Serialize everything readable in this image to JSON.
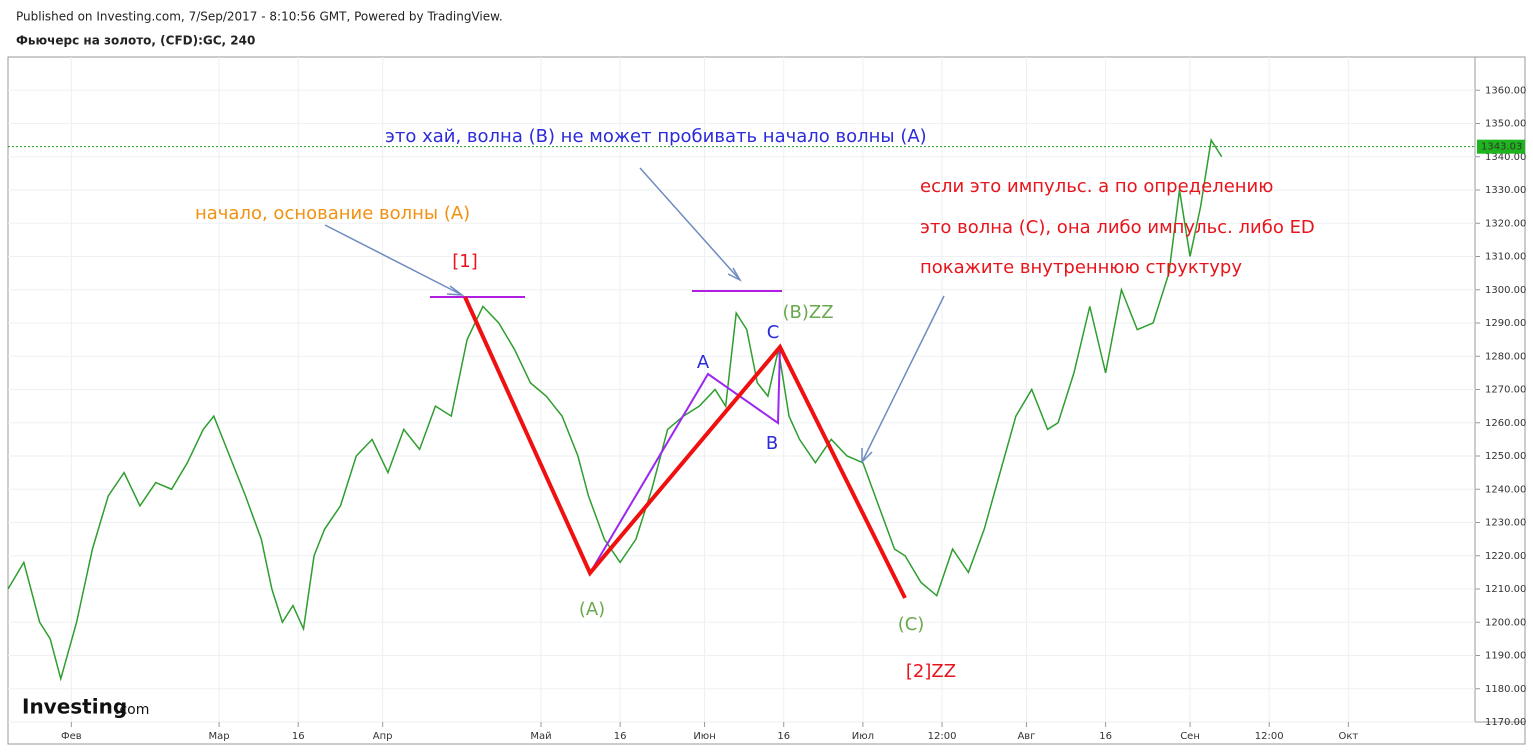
{
  "header": {
    "published": "Published on Investing.com, 7/Sep/2017 - 8:10:56 GMT, Powered by TradingView.",
    "symbol": "Фьючерс на золото, (CFD):GC, 240"
  },
  "logo": {
    "brand": "Investing",
    "suffix": ".com"
  },
  "chart_data": {
    "type": "line",
    "color": "#2e9e2e",
    "grid": true,
    "x": [
      20,
      23,
      26,
      28,
      30,
      33,
      36,
      39,
      42,
      45,
      48,
      51,
      54,
      57,
      59,
      62,
      65,
      68,
      70,
      72,
      74,
      76,
      78,
      80,
      83,
      86,
      89,
      92,
      95,
      98,
      101,
      104,
      107,
      110,
      113,
      116,
      119,
      122,
      125,
      128,
      130,
      133,
      136,
      139,
      142,
      145,
      148,
      151,
      154,
      156,
      158,
      160,
      162,
      164,
      166,
      168,
      170,
      173,
      176,
      179,
      182,
      185,
      188,
      190,
      193,
      196,
      199,
      202,
      205,
      208,
      211,
      214,
      217,
      219,
      222,
      225,
      228,
      231,
      234,
      237,
      240,
      242,
      244,
      246,
      248,
      250
    ],
    "values": [
      1210,
      1218,
      1200,
      1195,
      1183,
      1200,
      1222,
      1238,
      1245,
      1235,
      1242,
      1240,
      1248,
      1258,
      1262,
      1250,
      1238,
      1225,
      1210,
      1200,
      1205,
      1198,
      1220,
      1228,
      1235,
      1250,
      1255,
      1245,
      1258,
      1252,
      1265,
      1262,
      1285,
      1295,
      1290,
      1282,
      1272,
      1268,
      1262,
      1250,
      1238,
      1225,
      1218,
      1225,
      1240,
      1258,
      1262,
      1265,
      1270,
      1265,
      1293,
      1288,
      1272,
      1268,
      1282,
      1262,
      1255,
      1248,
      1255,
      1250,
      1248,
      1235,
      1222,
      1220,
      1212,
      1208,
      1222,
      1215,
      1228,
      1245,
      1262,
      1270,
      1258,
      1260,
      1275,
      1295,
      1275,
      1300,
      1288,
      1290,
      1305,
      1330,
      1310,
      1325,
      1345,
      1340
    ],
    "xlim": [
      20,
      298
    ],
    "xticks": [
      {
        "value": 32,
        "label": "Фев"
      },
      {
        "value": 60,
        "label": "Мар"
      },
      {
        "value": 75,
        "label": "16"
      },
      {
        "value": 91,
        "label": "Апр"
      },
      {
        "value": 121,
        "label": "Май"
      },
      {
        "value": 136,
        "label": "16"
      },
      {
        "value": 152,
        "label": "Июн"
      },
      {
        "value": 167,
        "label": "16"
      },
      {
        "value": 182,
        "label": "Июл"
      },
      {
        "value": 197,
        "label": "12:00"
      },
      {
        "value": 213,
        "label": "Авг"
      },
      {
        "value": 228,
        "label": "16"
      },
      {
        "value": 244,
        "label": "Сен"
      },
      {
        "value": 259,
        "label": "12:00"
      },
      {
        "value": 274,
        "label": "Окт"
      }
    ],
    "ylim": [
      1170,
      1370
    ],
    "yticks": [
      {
        "value": 1170,
        "label": "1170.00"
      },
      {
        "value": 1180,
        "label": "1180.00"
      },
      {
        "value": 1190,
        "label": "1190.00"
      },
      {
        "value": 1200,
        "label": "1200.00"
      },
      {
        "value": 1210,
        "label": "1210.00"
      },
      {
        "value": 1220,
        "label": "1220.00"
      },
      {
        "value": 1230,
        "label": "1230.00"
      },
      {
        "value": 1240,
        "label": "1240.00"
      },
      {
        "value": 1250,
        "label": "1250.00"
      },
      {
        "value": 1260,
        "label": "1260.00"
      },
      {
        "value": 1270,
        "label": "1270.00"
      },
      {
        "value": 1280,
        "label": "1280.00"
      },
      {
        "value": 1290,
        "label": "1290.00"
      },
      {
        "value": 1300,
        "label": "1300.00"
      },
      {
        "value": 1310,
        "label": "1310.00"
      },
      {
        "value": 1320,
        "label": "1320.00"
      },
      {
        "value": 1330,
        "label": "1330.00"
      },
      {
        "value": 1340,
        "label": "1340.00"
      },
      {
        "value": 1350,
        "label": "1350.00"
      },
      {
        "value": 1360,
        "label": "1360.00"
      }
    ],
    "last_value": 1343.03,
    "annotations": [
      {
        "text": "начало, основание волны (A)",
        "color": "#f29111"
      },
      {
        "text": "это хай, волна (B) не может пробивать начало волны (A)",
        "color": "#2b2bd9"
      },
      {
        "text": "если это импульс. а по определению",
        "color": "#e8141c"
      },
      {
        "text": "это волна (C), она либо импульс. либо ED",
        "color": "#e8141c"
      },
      {
        "text": "покажите внутреннюю структуру",
        "color": "#e8141c"
      },
      {
        "text": "[1]",
        "color": "#e8141c"
      },
      {
        "text": "(A)",
        "color": "#6aa84f"
      },
      {
        "text": "(B)ZZ",
        "color": "#6aa84f"
      },
      {
        "text": "C",
        "color": "#2b2bd9"
      },
      {
        "text": "A",
        "color": "#2b2bd9"
      },
      {
        "text": "B",
        "color": "#2b2bd9"
      },
      {
        "text": "(C)",
        "color": "#6aa84f"
      },
      {
        "text": "[2]ZZ",
        "color": "#e8141c"
      }
    ]
  }
}
